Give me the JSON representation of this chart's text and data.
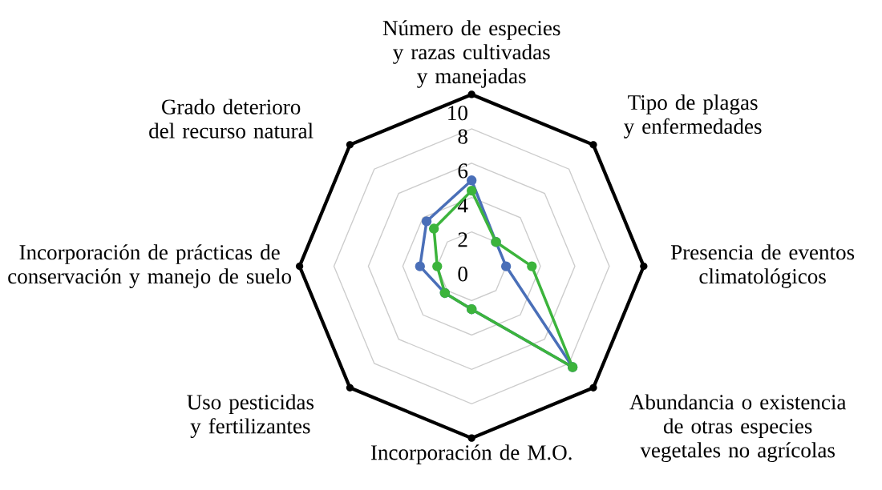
{
  "chart_data": {
    "type": "radar",
    "categories": [
      "Número de especies y razas cultivadas y manejadas",
      "Tipo de plagas y enfermedades",
      "Presencia de eventos climatológicos",
      "Abundancia o existencia de otras especies vegetales no agrícolas",
      "Incorporación de M.O.",
      "Uso pesticidas y fertilizantes",
      "Incorporación de prácticas de conservación y manejo de suelo",
      "Grado deterioro del recurso natural"
    ],
    "series": [
      {
        "color": "#4a6fb8",
        "values": [
          5,
          2,
          2,
          8.3,
          2.5,
          2.2,
          3,
          3.7
        ]
      },
      {
        "color": "#3cb43c",
        "values": [
          4.4,
          2,
          3.5,
          8.3,
          2.5,
          2.2,
          2,
          3.1
        ]
      }
    ],
    "ylim": [
      0,
      10
    ],
    "yticks": [
      0,
      2,
      4,
      6,
      8,
      10
    ],
    "grid": true,
    "marker": "circle"
  }
}
